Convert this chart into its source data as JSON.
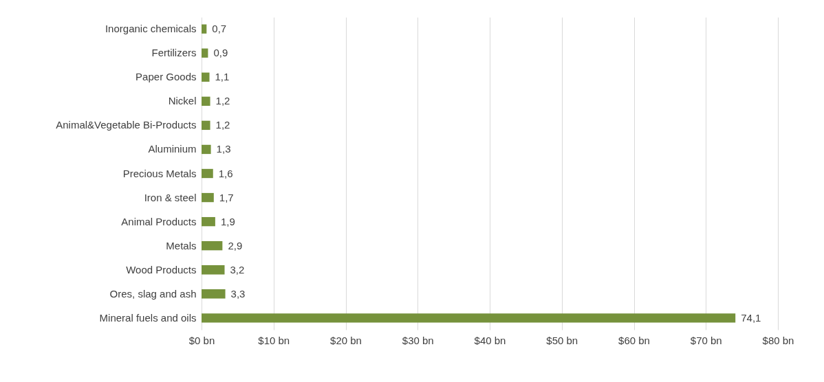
{
  "chart_data": {
    "type": "bar",
    "orientation": "horizontal",
    "categories": [
      "Inorganic chemicals",
      "Fertilizers",
      "Paper Goods",
      "Nickel",
      "Animal&Vegetable Bi-Products",
      "Aluminium",
      "Precious Metals",
      "Iron & steel",
      "Animal Products",
      "Metals",
      "Wood Products",
      "Ores, slag and ash",
      "Mineral fuels and oils"
    ],
    "values": [
      0.7,
      0.9,
      1.1,
      1.2,
      1.2,
      1.3,
      1.6,
      1.7,
      1.9,
      2.9,
      3.2,
      3.3,
      74.1
    ],
    "value_labels": [
      "0,7",
      "0,9",
      "1,1",
      "1,2",
      "1,2",
      "1,3",
      "1,6",
      "1,7",
      "1,9",
      "2,9",
      "3,2",
      "3,3",
      "74,1"
    ],
    "color": "#76923c",
    "xlim": [
      0,
      80
    ],
    "xticks": [
      {
        "value": 0,
        "label": "$0 bn"
      },
      {
        "value": 10,
        "label": "$10 bn"
      },
      {
        "value": 20,
        "label": "$20 bn"
      },
      {
        "value": 30,
        "label": "$30 bn"
      },
      {
        "value": 40,
        "label": "$40 bn"
      },
      {
        "value": 50,
        "label": "$50 bn"
      },
      {
        "value": 60,
        "label": "$60 bn"
      },
      {
        "value": 70,
        "label": "$70 bn"
      },
      {
        "value": 80,
        "label": "$80 bn"
      }
    ],
    "grid": "x"
  }
}
